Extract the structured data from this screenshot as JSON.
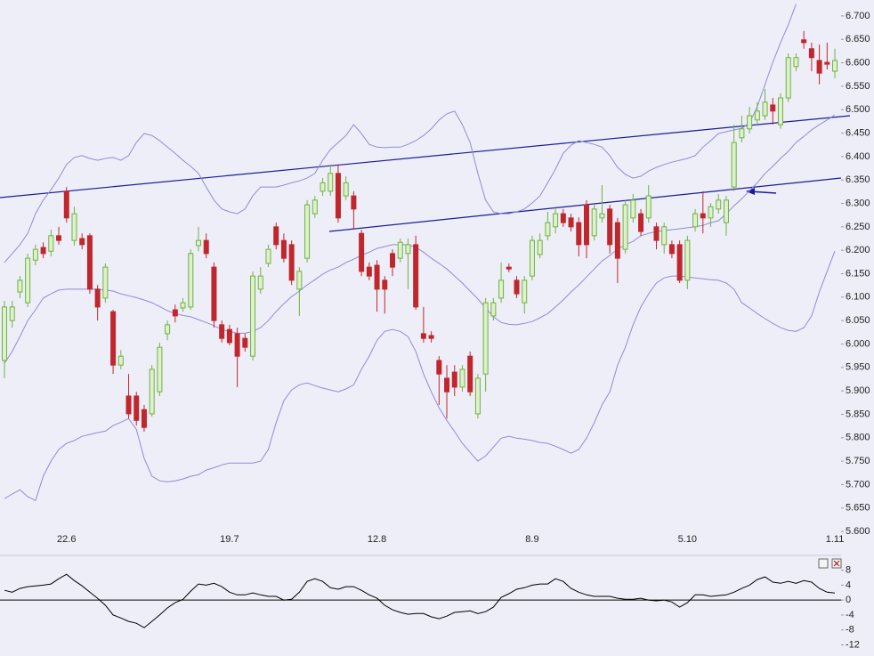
{
  "chart_data": [
    {
      "type": "candlestick",
      "categories": [
        null,
        null,
        null,
        null,
        null,
        null,
        null,
        null,
        "22.6",
        null,
        null,
        null,
        null,
        null,
        null,
        null,
        null,
        null,
        null,
        null,
        null,
        null,
        null,
        null,
        null,
        null,
        null,
        null,
        null,
        "19.7",
        null,
        null,
        null,
        null,
        null,
        null,
        null,
        null,
        null,
        null,
        null,
        null,
        null,
        null,
        null,
        null,
        null,
        null,
        "12.8",
        null,
        null,
        null,
        null,
        null,
        null,
        null,
        null,
        null,
        null,
        null,
        null,
        null,
        null,
        null,
        null,
        null,
        null,
        null,
        "8.9",
        null,
        null,
        null,
        null,
        null,
        null,
        null,
        null,
        null,
        null,
        null,
        null,
        null,
        null,
        null,
        null,
        null,
        null,
        null,
        "5.10",
        null,
        null,
        null,
        null,
        null,
        null,
        null,
        null,
        null,
        null,
        null,
        null,
        null,
        null,
        null,
        null,
        null,
        null,
        "1.11"
      ],
      "open": [
        5.965,
        6.05,
        6.111,
        6.088,
        6.179,
        6.206,
        6.198,
        6.231,
        6.326,
        6.221,
        6.225,
        6.231,
        6.117,
        6.098,
        6.069,
        5.955,
        5.889,
        5.889,
        5.86,
        5.851,
        5.898,
        6.022,
        6.073,
        6.077,
        6.079,
        6.21,
        6.221,
        6.164,
        6.041,
        6.031,
        6.022,
        6.012,
        5.974,
        6.117,
        6.172,
        6.25,
        6.221,
        6.212,
        6.117,
        6.183,
        6.278,
        6.326,
        6.326,
        6.364,
        6.316,
        6.316,
        6.236,
        6.164,
        6.168,
        6.136,
        6.193,
        6.183,
        6.193,
        6.212,
        6.022,
        6.018,
        5.965,
        5.927,
        5.94,
        5.908,
        5.974,
        5.851,
        5.936,
        6.06,
        6.098,
        6.164,
        6.136,
        6.088,
        6.145,
        6.191,
        6.231,
        6.25,
        6.278,
        6.269,
        6.259,
        6.297,
        6.231,
        6.269,
        6.288,
        6.259,
        6.202,
        6.269,
        6.278,
        6.269,
        6.25,
        6.212,
        6.212,
        6.212,
        6.136,
        6.25,
        6.278,
        6.269,
        6.288,
        6.259,
        6.335,
        6.44,
        6.459,
        6.478,
        6.487,
        6.51,
        6.468,
        6.525,
        6.592,
        6.649,
        6.63,
        6.605,
        6.601,
        6.582
      ],
      "high": [
        6.092,
        6.092,
        6.145,
        6.193,
        6.212,
        6.217,
        6.244,
        6.25,
        6.335,
        6.293,
        6.236,
        6.236,
        6.126,
        6.172,
        6.073,
        5.987,
        5.936,
        5.898,
        5.87,
        5.955,
        6.003,
        6.05,
        6.084,
        6.098,
        6.202,
        6.25,
        6.236,
        6.174,
        6.05,
        6.041,
        6.035,
        6.022,
        6.155,
        6.164,
        6.212,
        6.259,
        6.236,
        6.221,
        6.164,
        6.307,
        6.316,
        6.354,
        6.383,
        6.383,
        6.358,
        6.326,
        6.244,
        6.174,
        6.179,
        6.145,
        6.202,
        6.225,
        6.225,
        6.231,
        6.079,
        6.027,
        5.974,
        5.955,
        5.955,
        5.955,
        5.984,
        5.936,
        6.098,
        6.098,
        6.174,
        6.172,
        6.145,
        6.145,
        6.231,
        6.236,
        6.282,
        6.293,
        6.288,
        6.278,
        6.27,
        6.307,
        6.297,
        6.339,
        6.297,
        6.269,
        6.307,
        6.32,
        6.288,
        6.339,
        6.259,
        6.259,
        6.221,
        6.221,
        6.231,
        6.288,
        6.326,
        6.301,
        6.32,
        6.316,
        6.468,
        6.487,
        6.506,
        6.516,
        6.544,
        6.525,
        6.535,
        6.62,
        6.62,
        6.668,
        6.643,
        6.639,
        6.643,
        6.63
      ],
      "low": [
        5.927,
        6.035,
        6.098,
        6.079,
        6.168,
        6.183,
        6.187,
        6.212,
        6.259,
        6.21,
        6.202,
        6.107,
        6.05,
        6.088,
        5.936,
        5.946,
        5.841,
        5.826,
        5.813,
        5.845,
        5.889,
        6.008,
        6.046,
        6.069,
        6.073,
        6.198,
        6.183,
        6.035,
        6.003,
        5.997,
        5.908,
        5.984,
        5.965,
        6.107,
        6.164,
        6.202,
        6.174,
        6.126,
        6.06,
        6.174,
        6.269,
        6.316,
        6.316,
        6.259,
        6.307,
        6.244,
        6.145,
        6.136,
        6.069,
        6.065,
        6.145,
        6.174,
        6.117,
        6.073,
        6.003,
        6.003,
        5.87,
        5.841,
        5.889,
        5.898,
        5.889,
        5.841,
        5.898,
        6.05,
        6.088,
        6.153,
        6.098,
        6.065,
        6.136,
        6.183,
        6.221,
        6.236,
        6.25,
        6.24,
        6.187,
        6.183,
        6.221,
        6.259,
        6.193,
        6.13,
        6.193,
        6.259,
        6.231,
        6.259,
        6.202,
        6.193,
        6.183,
        6.13,
        6.117,
        6.24,
        6.236,
        6.25,
        6.278,
        6.231,
        6.326,
        6.43,
        6.449,
        6.468,
        6.478,
        6.468,
        6.459,
        6.516,
        6.582,
        6.63,
        6.582,
        6.554,
        6.586,
        6.567
      ],
      "close": [
        6.079,
        6.079,
        6.136,
        6.183,
        6.202,
        6.193,
        6.231,
        6.221,
        6.269,
        6.278,
        6.212,
        6.117,
        6.079,
        6.164,
        5.955,
        5.974,
        5.851,
        5.837,
        5.822,
        5.946,
        5.993,
        6.041,
        6.06,
        6.088,
        6.193,
        6.221,
        6.193,
        6.05,
        6.012,
        6.003,
        5.974,
        5.993,
        6.145,
        6.145,
        6.202,
        6.212,
        6.183,
        6.136,
        6.155,
        6.297,
        6.307,
        6.344,
        6.364,
        6.269,
        6.344,
        6.288,
        6.155,
        6.145,
        6.117,
        6.117,
        6.164,
        6.217,
        6.212,
        6.079,
        6.012,
        6.012,
        5.936,
        5.898,
        5.908,
        5.946,
        5.898,
        5.927,
        6.088,
        6.088,
        6.136,
        6.16,
        6.107,
        6.136,
        6.221,
        6.221,
        6.259,
        6.278,
        6.259,
        6.25,
        6.212,
        6.212,
        6.288,
        6.278,
        6.212,
        6.183,
        6.297,
        6.307,
        6.24,
        6.316,
        6.221,
        6.25,
        6.193,
        6.136,
        6.221,
        6.278,
        6.269,
        6.293,
        6.307,
        6.307,
        6.43,
        6.459,
        6.487,
        6.497,
        6.516,
        6.497,
        6.525,
        6.611,
        6.611,
        6.643,
        6.611,
        6.578,
        6.597,
        6.605
      ],
      "up_color": "#6db33f",
      "down_color": "#c0272d",
      "band_color": "#8c8cd8",
      "bands": [
        [
          6.174,
          6.193,
          6.212,
          6.236,
          6.278,
          6.307,
          6.329,
          6.354,
          6.383,
          6.398,
          6.402,
          6.396,
          6.392,
          6.396,
          6.398,
          6.392,
          6.402,
          6.43,
          6.449,
          6.445,
          6.434,
          6.42,
          6.407,
          6.392,
          6.379,
          6.364,
          6.335,
          6.307,
          6.288,
          6.282,
          6.278,
          6.288,
          6.316,
          6.335,
          6.335,
          6.335,
          6.339,
          6.344,
          6.348,
          6.354,
          6.364,
          6.392,
          6.415,
          6.43,
          6.445,
          6.468,
          6.449,
          6.426,
          6.42,
          6.419,
          6.42,
          6.42,
          6.426,
          6.434,
          6.445,
          6.459,
          6.478,
          6.491,
          6.497,
          6.468,
          6.43,
          6.364,
          6.307,
          6.282,
          6.278,
          6.278,
          6.282,
          6.288,
          6.301,
          6.316,
          6.344,
          6.373,
          6.407,
          6.424,
          6.434,
          6.43,
          6.426,
          6.42,
          6.402,
          6.377,
          6.362,
          6.354,
          6.358,
          6.369,
          6.377,
          6.383,
          6.388,
          6.392,
          6.396,
          6.402,
          6.42,
          6.434,
          6.449,
          6.453,
          6.457,
          6.46,
          6.472,
          6.506,
          6.554,
          6.601,
          6.643,
          6.681,
          6.725,
          null,
          null,
          null,
          null,
          null
        ],
        [
          5.959,
          5.984,
          6.016,
          6.05,
          6.073,
          6.098,
          6.107,
          6.115,
          6.117,
          6.117,
          6.117,
          6.117,
          6.117,
          6.115,
          6.113,
          6.107,
          6.103,
          6.099,
          6.094,
          6.088,
          6.08,
          6.071,
          6.065,
          6.061,
          6.058,
          6.052,
          6.046,
          6.039,
          6.031,
          6.027,
          6.023,
          6.023,
          6.027,
          6.035,
          6.05,
          6.069,
          6.086,
          6.101,
          6.113,
          6.126,
          6.137,
          6.149,
          6.158,
          6.164,
          6.174,
          6.181,
          6.189,
          6.196,
          6.204,
          6.208,
          6.212,
          6.212,
          6.212,
          6.206,
          6.196,
          6.183,
          6.172,
          6.16,
          6.145,
          6.13,
          6.113,
          6.096,
          6.077,
          6.058,
          6.046,
          6.042,
          6.041,
          6.044,
          6.048,
          6.056,
          6.065,
          6.079,
          6.094,
          6.111,
          6.126,
          6.143,
          6.16,
          6.177,
          6.189,
          6.202,
          6.212,
          6.219,
          6.231,
          6.236,
          6.24,
          6.242,
          6.244,
          6.246,
          6.248,
          6.25,
          6.253,
          6.259,
          6.263,
          6.278,
          6.295,
          6.31,
          6.327,
          6.344,
          6.364,
          6.379,
          6.396,
          6.411,
          6.43,
          6.443,
          6.457,
          6.468,
          6.478,
          6.489
        ],
        [
          5.67,
          5.68,
          5.689,
          5.674,
          5.666,
          5.718,
          5.75,
          5.775,
          5.788,
          5.794,
          5.803,
          5.807,
          5.811,
          5.814,
          5.826,
          5.833,
          5.841,
          5.818,
          5.756,
          5.718,
          5.708,
          5.706,
          5.708,
          5.712,
          5.718,
          5.721,
          5.731,
          5.736,
          5.742,
          5.746,
          5.746,
          5.746,
          5.746,
          5.75,
          5.775,
          5.832,
          5.879,
          5.902,
          5.913,
          5.917,
          5.911,
          5.906,
          5.902,
          5.898,
          5.904,
          5.913,
          5.946,
          5.974,
          6.008,
          6.027,
          6.031,
          6.027,
          6.016,
          5.984,
          5.936,
          5.898,
          5.864,
          5.837,
          5.813,
          5.788,
          5.769,
          5.75,
          5.761,
          5.78,
          5.799,
          5.803,
          5.799,
          5.797,
          5.794,
          5.79,
          5.788,
          5.782,
          5.775,
          5.767,
          5.775,
          5.799,
          5.832,
          5.87,
          5.898,
          5.955,
          5.993,
          6.041,
          6.079,
          6.107,
          6.13,
          6.141,
          6.145,
          6.145,
          6.143,
          6.141,
          6.139,
          6.137,
          6.136,
          6.13,
          6.117,
          6.088,
          6.077,
          6.065,
          6.054,
          6.044,
          6.035,
          6.029,
          6.027,
          6.035,
          6.06,
          6.111,
          6.155,
          6.198
        ]
      ],
      "ylim": [
        5.566,
        6.734
      ],
      "yticks": [
        {
          "value": 5.6,
          "label": "5.600"
        },
        {
          "value": 5.65,
          "label": "5.650"
        },
        {
          "value": 5.7,
          "label": "5.700"
        },
        {
          "value": 5.75,
          "label": "5.750"
        },
        {
          "value": 5.8,
          "label": "5.800"
        },
        {
          "value": 5.85,
          "label": "5.850"
        },
        {
          "value": 5.9,
          "label": "5.900"
        },
        {
          "value": 5.95,
          "label": "5.950"
        },
        {
          "value": 6.0,
          "label": "6.000"
        },
        {
          "value": 6.05,
          "label": "6.050"
        },
        {
          "value": 6.1,
          "label": "6.100"
        },
        {
          "value": 6.15,
          "label": "6.150"
        },
        {
          "value": 6.2,
          "label": "6.200"
        },
        {
          "value": 6.25,
          "label": "6.250"
        },
        {
          "value": 6.3,
          "label": "6.300"
        },
        {
          "value": 6.35,
          "label": "6.350"
        },
        {
          "value": 6.4,
          "label": "6.400"
        },
        {
          "value": 6.45,
          "label": "6.450"
        },
        {
          "value": 6.5,
          "label": "6.500"
        },
        {
          "value": 6.55,
          "label": "6.550"
        },
        {
          "value": 6.6,
          "label": "6.600"
        },
        {
          "value": 6.65,
          "label": "6.650"
        },
        {
          "value": 6.7,
          "label": "6.700"
        }
      ]
    },
    {
      "type": "line",
      "color": "#000000",
      "values": [
        2.6,
        2.1,
        3.1,
        3.6,
        3.8,
        4.0,
        4.3,
        5.7,
        6.9,
        5.2,
        3.8,
        2.1,
        0.5,
        -1.4,
        -4.0,
        -4.8,
        -5.7,
        -6.2,
        -7.4,
        -5.7,
        -4.0,
        -2.1,
        -0.7,
        0.2,
        2.4,
        4.3,
        4.0,
        4.5,
        3.6,
        2.1,
        1.4,
        1.4,
        1.9,
        1.4,
        1.0,
        1.0,
        0.0,
        0.2,
        2.1,
        5.0,
        5.7,
        5.0,
        3.3,
        2.9,
        3.6,
        3.6,
        2.6,
        1.4,
        0.5,
        -1.4,
        -2.6,
        -3.3,
        -3.8,
        -3.6,
        -3.6,
        -4.5,
        -5.0,
        -4.3,
        -3.3,
        -3.1,
        -2.9,
        -3.6,
        -3.1,
        -1.9,
        0.7,
        1.7,
        2.9,
        3.3,
        4.0,
        4.3,
        4.3,
        5.7,
        5.0,
        3.1,
        2.1,
        1.4,
        1.0,
        1.0,
        1.0,
        0.5,
        0.2,
        0.2,
        0.5,
        0.0,
        -0.2,
        0.0,
        -0.5,
        -1.9,
        -0.7,
        1.4,
        1.4,
        1.0,
        1.2,
        1.4,
        2.1,
        3.1,
        4.0,
        5.5,
        6.2,
        4.8,
        4.5,
        5.0,
        4.5,
        5.2,
        4.8,
        3.1,
        2.1,
        1.9
      ],
      "ylim": [
        -14.5,
        11
      ],
      "yticks": [
        8,
        4,
        0,
        -4,
        -8,
        -12
      ]
    }
  ]
}
